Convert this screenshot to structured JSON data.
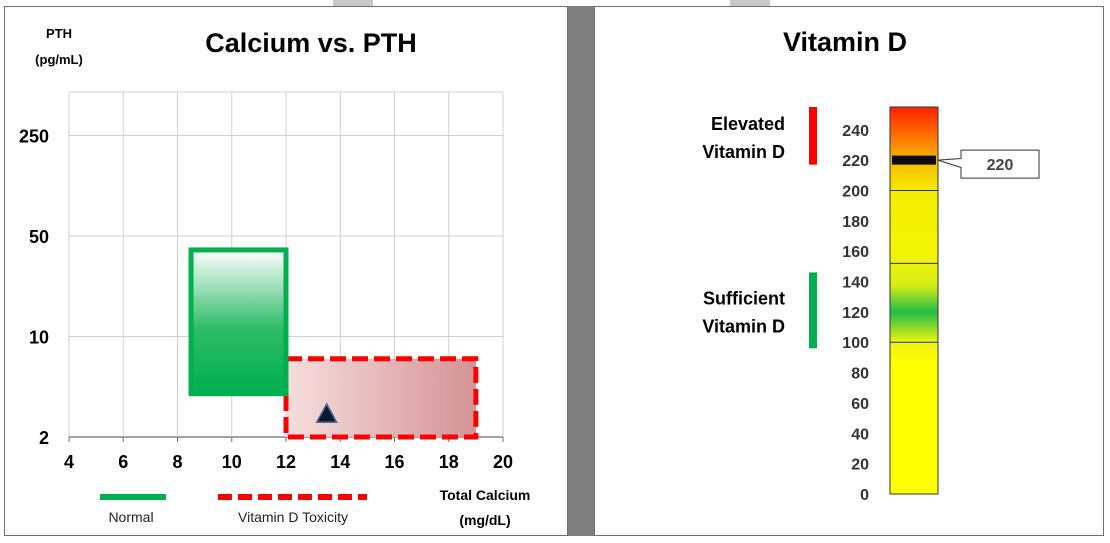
{
  "chart_data": [
    {
      "type": "scatter",
      "title": "Calcium vs. PTH",
      "ylabel_line1": "PTH",
      "ylabel_line2": "(pg/mL)",
      "xlabel_line1": "Total Calcium",
      "xlabel_line2": "(mg/dL)",
      "x_ticks": [
        4,
        6,
        8,
        10,
        12,
        14,
        16,
        18,
        20
      ],
      "xlim": [
        4,
        20
      ],
      "y_tick_labels": [
        "2",
        "10",
        "50",
        "250"
      ],
      "grid": true,
      "regions": [
        {
          "name": "Normal",
          "x_range": [
            8.5,
            12
          ],
          "y_range": [
            4,
            40
          ],
          "color": "#00b050",
          "border": "solid"
        },
        {
          "name": "Vitamin D Toxicity",
          "x_range": [
            12,
            19
          ],
          "y_range": [
            2,
            7
          ],
          "color": "#ff0000",
          "border": "dashed"
        }
      ],
      "points": [
        {
          "x": 13.5,
          "y": 2.9,
          "marker": "triangle",
          "color": "#0d1b2e"
        }
      ],
      "legend": [
        {
          "label": "Normal",
          "color": "#00b050",
          "style": "solid"
        },
        {
          "label": "Vitamin D Toxicity",
          "color": "#ff0000",
          "style": "dashed"
        }
      ],
      "legend_placement": "bottom"
    },
    {
      "type": "gauge",
      "title": "Vitamin D",
      "ticks": [
        0,
        20,
        40,
        60,
        80,
        100,
        120,
        140,
        160,
        180,
        200,
        220,
        240
      ],
      "range": [
        0,
        255
      ],
      "value": 220,
      "value_label": "220",
      "zones": [
        {
          "label_line1": "Elevated",
          "label_line2": "Vitamin D",
          "range": [
            217,
            255
          ],
          "color": "#ff0000"
        },
        {
          "label_line1": "Sufficient",
          "label_line2": "Vitamin D",
          "range": [
            96,
            146
          ],
          "color": "#00b050"
        }
      ],
      "band_lines": [
        100,
        152,
        200
      ]
    }
  ]
}
